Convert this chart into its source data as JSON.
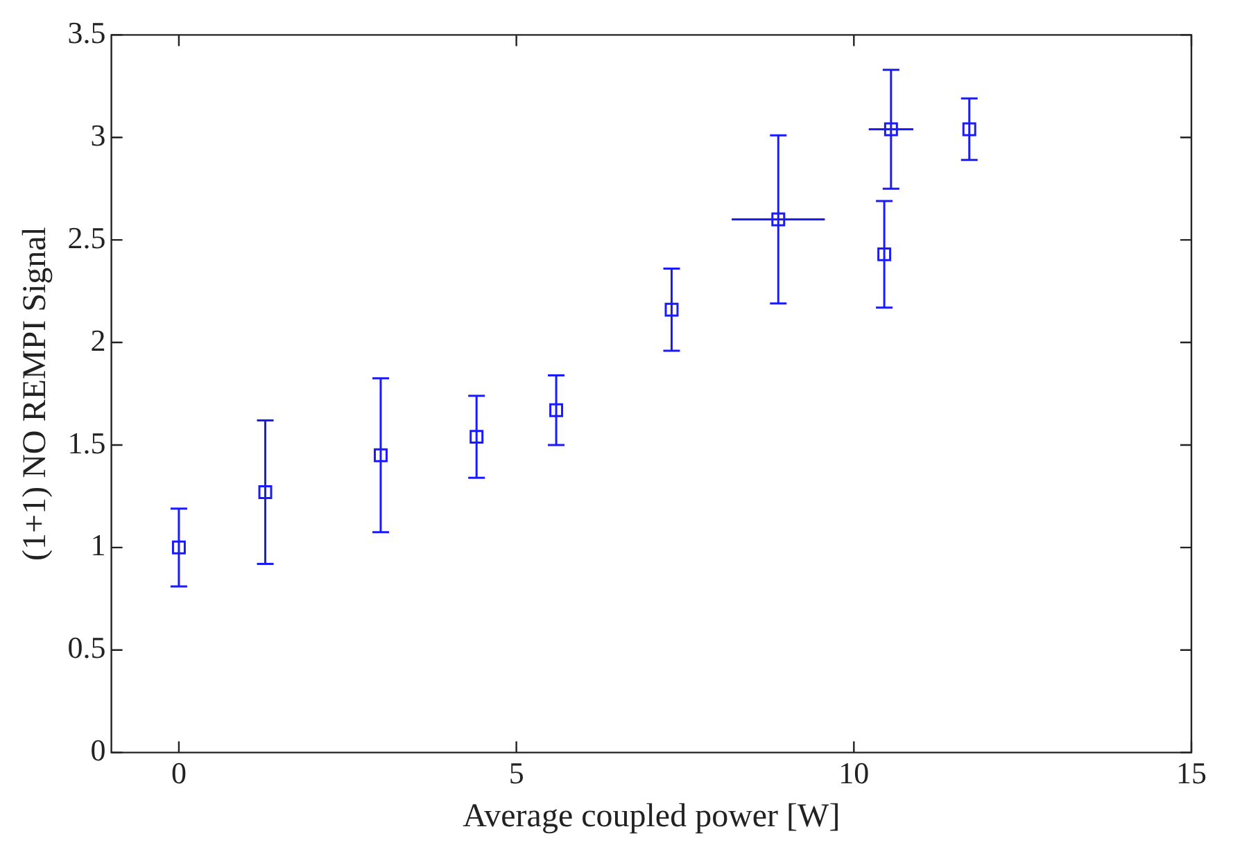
{
  "chart_data": {
    "type": "scatter",
    "xlabel": "Average coupled power [W]",
    "ylabel": "(1+1) NO REMPI Signal",
    "x": [
      0,
      1.28,
      2.99,
      4.41,
      5.59,
      7.3,
      8.88,
      10.45,
      10.55,
      11.71
    ],
    "series": [
      {
        "color": "#1a1aff",
        "values": [
          1.0,
          1.27,
          1.45,
          1.54,
          1.67,
          2.16,
          2.6,
          2.43,
          3.04,
          3.04
        ],
        "errors": [
          0.19,
          0.35,
          0.375,
          0.2,
          0.17,
          0.2,
          0.41,
          0.26,
          0.29,
          0.15
        ],
        "xerrors": [
          null,
          null,
          null,
          null,
          null,
          null,
          0.69,
          null,
          0.33,
          null
        ]
      }
    ],
    "xlim": [
      -1,
      15
    ],
    "xticks": [
      0,
      5,
      10,
      15
    ],
    "ylim": [
      0,
      3.5
    ],
    "yticks": [
      0,
      0.5,
      1,
      1.5,
      2,
      2.5,
      3,
      3.5
    ],
    "marker": "square",
    "grid": false,
    "legend": false
  }
}
